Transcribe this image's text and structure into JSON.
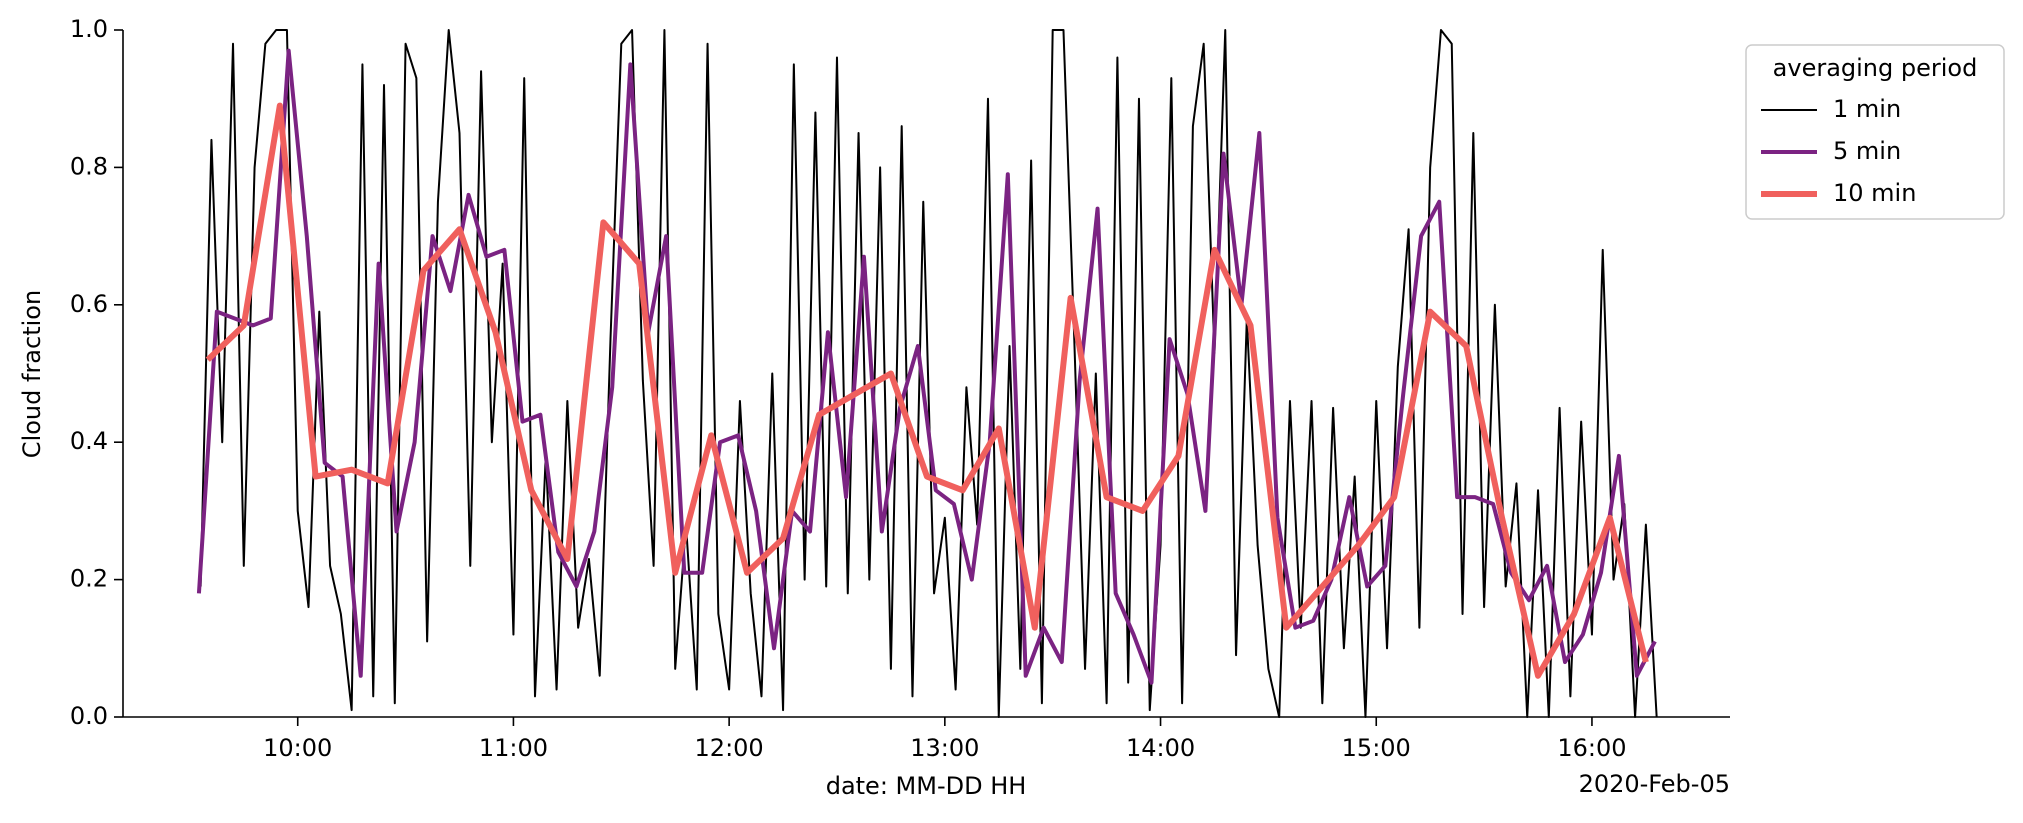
{
  "chart_data": {
    "type": "line",
    "xlabel": "date: MM-DD HH",
    "ylabel": "Cloud fraction",
    "offset_label": "2020-Feb-05",
    "legend_title": "averaging period",
    "legend": "outside-upper-right",
    "xlim": [
      9.19,
      16.64
    ],
    "xticks": [
      {
        "value": 10,
        "label": "10:00"
      },
      {
        "value": 11,
        "label": "11:00"
      },
      {
        "value": 12,
        "label": "12:00"
      },
      {
        "value": 13,
        "label": "13:00"
      },
      {
        "value": 14,
        "label": "14:00"
      },
      {
        "value": 15,
        "label": "15:00"
      },
      {
        "value": 16,
        "label": "16:00"
      }
    ],
    "ylim": [
      0,
      1
    ],
    "yticks": [
      {
        "value": 0,
        "label": "0.0"
      },
      {
        "value": 0.2,
        "label": "0.2"
      },
      {
        "value": 0.4,
        "label": "0.4"
      },
      {
        "value": 0.6,
        "label": "0.6"
      },
      {
        "value": 0.8,
        "label": "0.8"
      },
      {
        "value": 1,
        "label": "1.0"
      }
    ],
    "series": [
      {
        "name": "1 min",
        "color": "#000000",
        "linewidth": 2,
        "x": [
          9.55,
          9.6,
          9.65,
          9.7,
          9.75,
          9.8,
          9.85,
          9.9,
          9.95,
          10.0,
          10.05,
          10.1,
          10.15,
          10.2,
          10.25,
          10.3,
          10.35,
          10.4,
          10.45,
          10.5,
          10.55,
          10.6,
          10.65,
          10.7,
          10.75,
          10.8,
          10.85,
          10.9,
          10.95,
          11.0,
          11.05,
          11.1,
          11.15,
          11.2,
          11.25,
          11.3,
          11.35,
          11.4,
          11.45,
          11.5,
          11.55,
          11.6,
          11.65,
          11.7,
          11.75,
          11.8,
          11.85,
          11.9,
          11.95,
          12.0,
          12.05,
          12.1,
          12.15,
          12.2,
          12.25,
          12.3,
          12.35,
          12.4,
          12.45,
          12.5,
          12.55,
          12.6,
          12.65,
          12.7,
          12.75,
          12.8,
          12.85,
          12.9,
          12.95,
          13.0,
          13.05,
          13.1,
          13.15,
          13.2,
          13.25,
          13.3,
          13.35,
          13.4,
          13.45,
          13.5,
          13.55,
          13.6,
          13.65,
          13.7,
          13.75,
          13.8,
          13.85,
          13.9,
          13.95,
          14.0,
          14.05,
          14.1,
          14.15,
          14.2,
          14.25,
          14.3,
          14.35,
          14.4,
          14.45,
          14.5,
          14.55,
          14.6,
          14.65,
          14.7,
          14.75,
          14.8,
          14.85,
          14.9,
          14.95,
          15.0,
          15.05,
          15.1,
          15.15,
          15.2,
          15.25,
          15.3,
          15.35,
          15.4,
          15.45,
          15.5,
          15.55,
          15.6,
          15.65,
          15.7,
          15.75,
          15.8,
          15.85,
          15.9,
          15.95,
          16.0,
          16.05,
          16.1,
          16.15,
          16.2,
          16.25,
          16.3
        ],
        "values": [
          0.19,
          0.84,
          0.4,
          0.98,
          0.22,
          0.8,
          0.98,
          1.0,
          1.0,
          0.3,
          0.16,
          0.59,
          0.22,
          0.15,
          0.01,
          0.95,
          0.03,
          0.92,
          0.02,
          0.98,
          0.93,
          0.11,
          0.75,
          1.0,
          0.85,
          0.22,
          0.94,
          0.4,
          0.66,
          0.12,
          0.93,
          0.03,
          0.38,
          0.04,
          0.46,
          0.13,
          0.23,
          0.06,
          0.55,
          0.98,
          1.0,
          0.49,
          0.22,
          1.0,
          0.07,
          0.28,
          0.04,
          0.98,
          0.15,
          0.04,
          0.46,
          0.18,
          0.03,
          0.5,
          0.01,
          0.95,
          0.2,
          0.88,
          0.19,
          0.96,
          0.18,
          0.85,
          0.2,
          0.8,
          0.07,
          0.86,
          0.03,
          0.75,
          0.18,
          0.29,
          0.04,
          0.48,
          0.28,
          0.9,
          0.0,
          0.54,
          0.07,
          0.81,
          0.02,
          1.0,
          1.0,
          0.55,
          0.07,
          0.5,
          0.02,
          0.96,
          0.05,
          0.9,
          0.01,
          0.25,
          0.93,
          0.02,
          0.86,
          0.98,
          0.53,
          1.0,
          0.09,
          0.58,
          0.25,
          0.07,
          0.0,
          0.46,
          0.13,
          0.46,
          0.02,
          0.45,
          0.1,
          0.35,
          0.0,
          0.46,
          0.1,
          0.51,
          0.71,
          0.13,
          0.8,
          1.0,
          0.98,
          0.15,
          0.85,
          0.16,
          0.6,
          0.19,
          0.34,
          0.0,
          0.33,
          0.0,
          0.45,
          0.03,
          0.43,
          0.12,
          0.68,
          0.2,
          0.31,
          0.0,
          0.28,
          0.0
        ]
      },
      {
        "name": "5 min",
        "color": "#7b2382",
        "linewidth": 4,
        "x": [
          9.542,
          9.625,
          9.708,
          9.792,
          9.875,
          9.958,
          10.042,
          10.125,
          10.208,
          10.292,
          10.375,
          10.458,
          10.542,
          10.625,
          10.708,
          10.792,
          10.875,
          10.958,
          11.042,
          11.125,
          11.208,
          11.292,
          11.375,
          11.458,
          11.542,
          11.625,
          11.708,
          11.792,
          11.875,
          11.958,
          12.042,
          12.125,
          12.208,
          12.292,
          12.375,
          12.458,
          12.542,
          12.625,
          12.708,
          12.792,
          12.875,
          12.958,
          13.042,
          13.125,
          13.208,
          13.292,
          13.375,
          13.458,
          13.542,
          13.625,
          13.708,
          13.792,
          13.875,
          13.958,
          14.042,
          14.125,
          14.208,
          14.292,
          14.375,
          14.458,
          14.542,
          14.625,
          14.708,
          14.792,
          14.875,
          14.958,
          15.042,
          15.125,
          15.208,
          15.292,
          15.375,
          15.458,
          15.542,
          15.625,
          15.708,
          15.792,
          15.875,
          15.958,
          16.042,
          16.125,
          16.208,
          16.292
        ],
        "values": [
          0.18,
          0.59,
          0.58,
          0.57,
          0.58,
          0.97,
          0.7,
          0.37,
          0.35,
          0.06,
          0.66,
          0.27,
          0.4,
          0.7,
          0.62,
          0.76,
          0.67,
          0.68,
          0.43,
          0.44,
          0.24,
          0.19,
          0.27,
          0.48,
          0.95,
          0.56,
          0.7,
          0.21,
          0.21,
          0.4,
          0.41,
          0.3,
          0.1,
          0.3,
          0.27,
          0.56,
          0.32,
          0.67,
          0.27,
          0.45,
          0.54,
          0.33,
          0.31,
          0.2,
          0.4,
          0.79,
          0.06,
          0.13,
          0.08,
          0.49,
          0.74,
          0.18,
          0.12,
          0.05,
          0.55,
          0.47,
          0.3,
          0.82,
          0.6,
          0.85,
          0.29,
          0.13,
          0.14,
          0.2,
          0.32,
          0.19,
          0.22,
          0.47,
          0.7,
          0.75,
          0.32,
          0.32,
          0.31,
          0.21,
          0.17,
          0.22,
          0.08,
          0.12,
          0.21,
          0.38,
          0.06,
          0.11
        ]
      },
      {
        "name": "10 min",
        "color": "#f0605d",
        "linewidth": 6,
        "x": [
          9.583,
          9.75,
          9.917,
          10.083,
          10.25,
          10.417,
          10.583,
          10.75,
          10.917,
          11.083,
          11.25,
          11.417,
          11.583,
          11.75,
          11.917,
          12.083,
          12.25,
          12.417,
          12.583,
          12.75,
          12.917,
          13.083,
          13.25,
          13.417,
          13.583,
          13.75,
          13.917,
          14.083,
          14.25,
          14.417,
          14.583,
          14.75,
          14.917,
          15.083,
          15.25,
          15.417,
          15.583,
          15.75,
          15.917,
          16.083,
          16.25
        ],
        "values": [
          0.52,
          0.57,
          0.89,
          0.35,
          0.36,
          0.34,
          0.65,
          0.71,
          0.56,
          0.33,
          0.23,
          0.72,
          0.66,
          0.21,
          0.41,
          0.21,
          0.26,
          0.44,
          0.47,
          0.5,
          0.35,
          0.33,
          0.42,
          0.13,
          0.61,
          0.32,
          0.3,
          0.38,
          0.68,
          0.57,
          0.13,
          0.19,
          0.25,
          0.32,
          0.59,
          0.54,
          0.29,
          0.06,
          0.15,
          0.29,
          0.08
        ]
      }
    ]
  }
}
